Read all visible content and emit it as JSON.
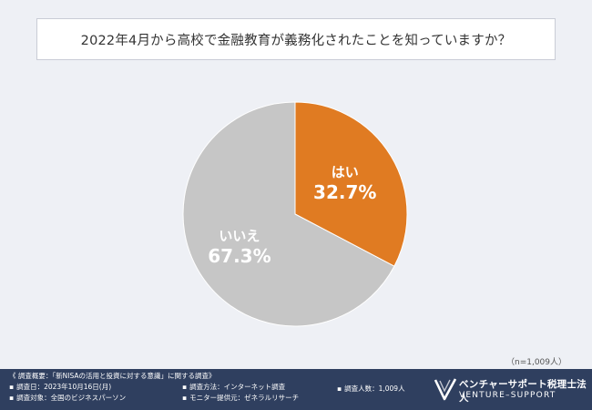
{
  "title": "2022年4月から高校で金融教育が義務化されたことを知っていますか？",
  "sample_note": "（n=1,009人）",
  "chart_data": {
    "type": "pie",
    "slices": [
      {
        "label": "はい",
        "value": 32.7,
        "display": "32.7%",
        "color": "#e07b22"
      },
      {
        "label": "いいえ",
        "value": 67.3,
        "display": "67.3%",
        "color": "#c6c6c6"
      }
    ]
  },
  "footer": {
    "overview": "《 調査概要：「新NISAの活用と投資に対する意識」に関する調査》",
    "date": "調査日：2023年10月16日(月)",
    "target": "調査対象：全国のビジネスパーソン",
    "method": "調査方法：インターネット調査",
    "provider": "モニター提供元：ゼネラルリサーチ",
    "count": "調査人数：1,009人",
    "bullet": "▪"
  },
  "logo": {
    "name_jp": "ベンチャーサポート税理士法人",
    "name_en": "VENTURE–SUPPORT"
  }
}
